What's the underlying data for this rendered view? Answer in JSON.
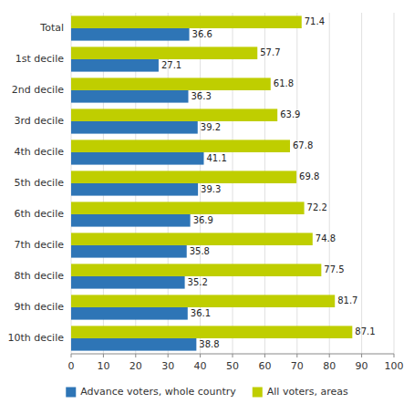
{
  "chart_data": {
    "type": "bar",
    "orientation": "horizontal",
    "categories": [
      "Total",
      "1st decile",
      "2nd decile",
      "3rd decile",
      "4th decile",
      "5th decile",
      "6th decile",
      "7th decile",
      "8th decile",
      "9th decile",
      "10th decile"
    ],
    "series": [
      {
        "name": "Advance voters, whole country",
        "color": "#2E75B6",
        "values": [
          36.6,
          27.1,
          36.3,
          39.2,
          41.1,
          39.3,
          36.9,
          35.8,
          35.2,
          36.1,
          38.8
        ]
      },
      {
        "name": "All voters, areas",
        "color": "#BFCE00",
        "values": [
          71.4,
          57.7,
          61.8,
          63.9,
          67.8,
          69.8,
          72.2,
          74.8,
          77.5,
          81.7,
          87.1
        ]
      }
    ],
    "xlim": [
      0,
      100
    ],
    "xticks": [
      0,
      10,
      20,
      30,
      40,
      50,
      60,
      70,
      80,
      90,
      100
    ],
    "grid": true,
    "data_labels": true,
    "legend": "bottom"
  }
}
